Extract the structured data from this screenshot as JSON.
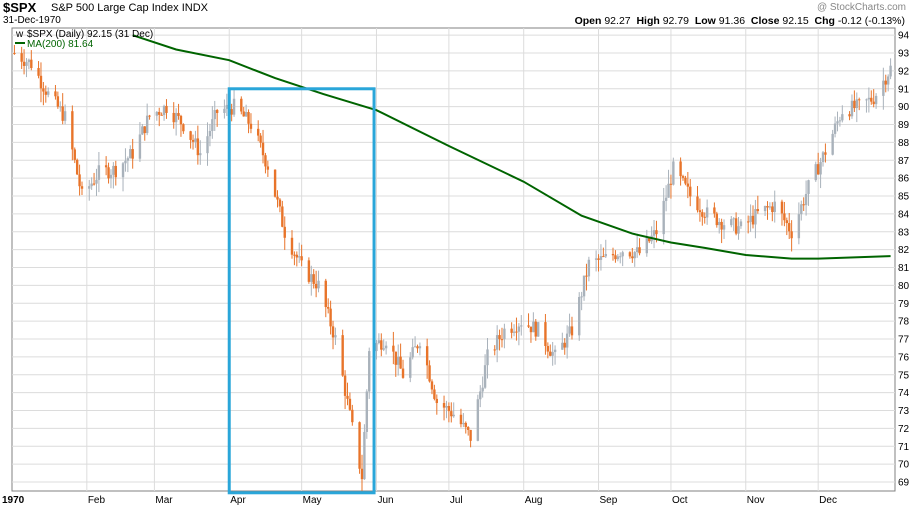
{
  "header": {
    "ticker": "$SPX",
    "index_name": "S&P 500 Large Cap Index",
    "exchange": "INDX",
    "date": "31-Dec-1970",
    "watermark": "@ StockCharts.com",
    "open_label": "Open",
    "open": "92.27",
    "high_label": "High",
    "high": "92.79",
    "low_label": "Low",
    "low": "91.36",
    "close_label": "Close",
    "close": "92.15",
    "chg_label": "Chg",
    "chg": "-0.12 (-0.13%)"
  },
  "legend": {
    "price": "$SPX (Daily) 92.15 (31 Dec)",
    "ma": "MA(200) 81.64"
  },
  "colors": {
    "up": "#a9b2bb",
    "down": "#e8742a",
    "ma": "#006400",
    "highlight": "#2aa6d9",
    "grid": "#dcdcdc"
  },
  "chart_data": {
    "type": "candlestick",
    "title": "$SPX S&P 500 Large Cap Index INDX",
    "x_labels": [
      "1970",
      "Feb",
      "Mar",
      "Apr",
      "May",
      "Jun",
      "Jul",
      "Aug",
      "Sep",
      "Oct",
      "Nov",
      "Dec"
    ],
    "y_ticks": [
      69,
      70,
      71,
      72,
      73,
      74,
      75,
      76,
      77,
      78,
      79,
      80,
      81,
      82,
      83,
      84,
      85,
      86,
      87,
      88,
      89,
      90,
      91,
      92,
      93,
      94
    ],
    "ylim": [
      68.5,
      94.4
    ],
    "grid": true,
    "price_series": {
      "name": "$SPX (Daily)",
      "weekly_close": [
        [
          "1970-01-02",
          93.0
        ],
        [
          "1970-01-09",
          92.4
        ],
        [
          "1970-01-16",
          90.7
        ],
        [
          "1970-01-23",
          89.4
        ],
        [
          "1970-01-30",
          85.0
        ],
        [
          "1970-02-06",
          86.3
        ],
        [
          "1970-02-13",
          86.5
        ],
        [
          "1970-02-20",
          87.4
        ],
        [
          "1970-02-27",
          89.5
        ],
        [
          "1970-03-06",
          90.0
        ],
        [
          "1970-03-13",
          89.0
        ],
        [
          "1970-03-20",
          87.4
        ],
        [
          "1970-03-27",
          89.7
        ],
        [
          "1970-04-03",
          90.0
        ],
        [
          "1970-04-10",
          89.0
        ],
        [
          "1970-04-17",
          86.7
        ],
        [
          "1970-04-24",
          83.0
        ],
        [
          "1970-05-01",
          81.0
        ],
        [
          "1970-05-08",
          80.0
        ],
        [
          "1970-05-15",
          77.0
        ],
        [
          "1970-05-22",
          72.0
        ],
        [
          "1970-05-26",
          69.3
        ],
        [
          "1970-05-29",
          76.5
        ],
        [
          "1970-06-05",
          77.0
        ],
        [
          "1970-06-12",
          75.0
        ],
        [
          "1970-06-19",
          77.0
        ],
        [
          "1970-06-26",
          73.5
        ],
        [
          "1970-07-03",
          72.8
        ],
        [
          "1970-07-10",
          71.5
        ],
        [
          "1970-07-17",
          76.0
        ],
        [
          "1970-07-24",
          77.5
        ],
        [
          "1970-07-31",
          78.0
        ],
        [
          "1970-08-07",
          77.5
        ],
        [
          "1970-08-14",
          76.0
        ],
        [
          "1970-08-21",
          77.5
        ],
        [
          "1970-08-28",
          81.2
        ],
        [
          "1970-09-04",
          81.5
        ],
        [
          "1970-09-11",
          82.0
        ],
        [
          "1970-09-18",
          81.8
        ],
        [
          "1970-09-25",
          83.0
        ],
        [
          "1970-10-02",
          86.5
        ],
        [
          "1970-10-09",
          85.0
        ],
        [
          "1970-10-16",
          84.0
        ],
        [
          "1970-10-23",
          83.5
        ],
        [
          "1970-10-30",
          83.2
        ],
        [
          "1970-11-06",
          84.0
        ],
        [
          "1970-11-13",
          84.5
        ],
        [
          "1970-11-20",
          83.0
        ],
        [
          "1970-11-27",
          85.5
        ],
        [
          "1970-12-04",
          87.5
        ],
        [
          "1970-12-11",
          89.8
        ],
        [
          "1970-12-18",
          90.0
        ],
        [
          "1970-12-24",
          90.5
        ],
        [
          "1970-12-31",
          92.15
        ]
      ]
    },
    "ma_series": {
      "name": "MA(200)",
      "points": [
        [
          "1970-02-20",
          94.0
        ],
        [
          "1970-03-10",
          93.2
        ],
        [
          "1970-04-01",
          92.6
        ],
        [
          "1970-04-20",
          91.6
        ],
        [
          "1970-05-10",
          90.7
        ],
        [
          "1970-06-01",
          89.8
        ],
        [
          "1970-07-01",
          87.8
        ],
        [
          "1970-08-01",
          85.8
        ],
        [
          "1970-08-25",
          83.9
        ],
        [
          "1970-09-15",
          82.9
        ],
        [
          "1970-10-01",
          82.4
        ],
        [
          "1970-10-15",
          82.1
        ],
        [
          "1970-11-01",
          81.7
        ],
        [
          "1970-11-20",
          81.5
        ],
        [
          "1970-12-01",
          81.5
        ],
        [
          "1970-12-31",
          81.64
        ]
      ]
    },
    "highlight_box": {
      "x_start": "1970-04-01",
      "x_end": "1970-05-31",
      "y_low": 68.4,
      "y_high": 91.0
    }
  }
}
